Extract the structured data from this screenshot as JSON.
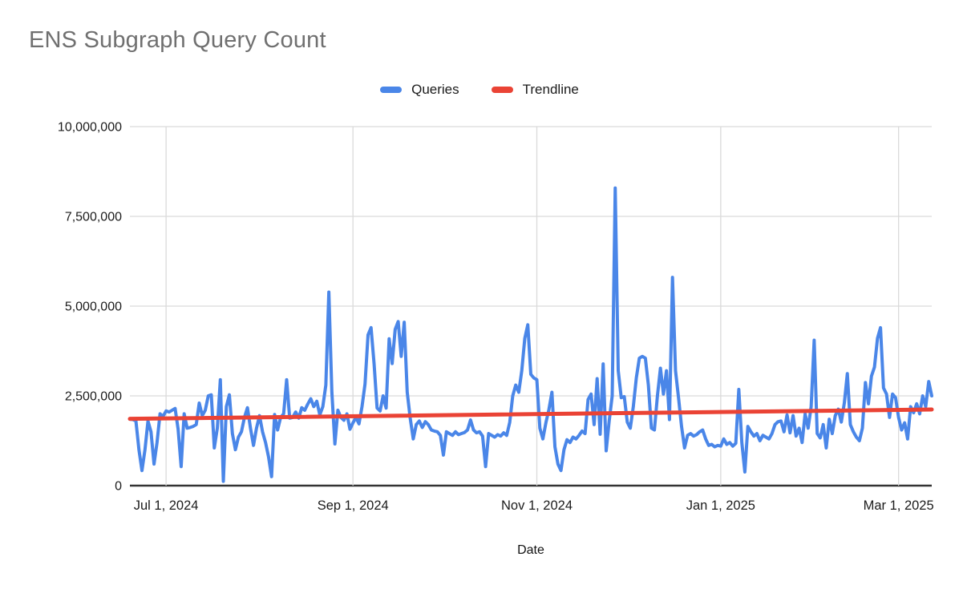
{
  "title": "ENS Subgraph Query Count",
  "legend": {
    "items": [
      {
        "label": "Queries",
        "color": "#4a86e8"
      },
      {
        "label": "Trendline",
        "color": "#ea4335"
      }
    ]
  },
  "x_axis_title": "Date",
  "colors": {
    "series_blue": "#4a86e8",
    "trend_red": "#ea4335",
    "title_gray": "#707070",
    "tick_text": "#1b1b1b",
    "gridline": "#dadada",
    "axis_line": "#333333",
    "background": "#ffffff"
  },
  "chart_data": {
    "type": "line",
    "title": "ENS Subgraph Query Count",
    "xlabel": "Date",
    "ylabel": "",
    "grid": true,
    "legend_position": "top-center",
    "x_axis": {
      "type": "date",
      "start": "2024-06-19",
      "end": "2025-03-12",
      "frequency": "daily",
      "num_points": 267
    },
    "x_ticks": [
      {
        "label": "Jul 1, 2024",
        "day_index": 12
      },
      {
        "label": "Sep 1, 2024",
        "day_index": 74
      },
      {
        "label": "Nov 1, 2024",
        "day_index": 135
      },
      {
        "label": "Jan 1, 2025",
        "day_index": 196
      },
      {
        "label": "Mar 1, 2025",
        "day_index": 255
      }
    ],
    "y_axis": {
      "min": 0,
      "max": 10000000,
      "tick_interval": 2500000,
      "ticks": [
        {
          "value": 0,
          "label": "0"
        },
        {
          "value": 2500000,
          "label": "2,500,000"
        },
        {
          "value": 5000000,
          "label": "5,000,000"
        },
        {
          "value": 7500000,
          "label": "7,500,000"
        },
        {
          "value": 10000000,
          "label": "10,000,000"
        }
      ]
    },
    "series": [
      {
        "name": "Queries",
        "color": "#4a86e8",
        "values": [
          1850000,
          1840000,
          1800000,
          1000000,
          420000,
          1000000,
          1800000,
          1500000,
          600000,
          1200000,
          2000000,
          1930000,
          2080000,
          2050000,
          2100000,
          2150000,
          1570000,
          530000,
          2000000,
          1600000,
          1620000,
          1650000,
          1700000,
          2300000,
          1950000,
          2100000,
          2500000,
          2530000,
          1050000,
          1600000,
          2950000,
          120000,
          2200000,
          2530000,
          1450000,
          1000000,
          1350000,
          1500000,
          1900000,
          2170000,
          1600000,
          1120000,
          1600000,
          1950000,
          1500000,
          1200000,
          800000,
          250000,
          1980000,
          1550000,
          1900000,
          2000000,
          2950000,
          1880000,
          1900000,
          2050000,
          1880000,
          2170000,
          2100000,
          2270000,
          2420000,
          2200000,
          2350000,
          1970000,
          2200000,
          2800000,
          5390000,
          2600000,
          1160000,
          2100000,
          1900000,
          1820000,
          2000000,
          1570000,
          1750000,
          1900000,
          1720000,
          2200000,
          2830000,
          4200000,
          4400000,
          3400000,
          2160000,
          2080000,
          2500000,
          2160000,
          4090000,
          3400000,
          4350000,
          4570000,
          3600000,
          4550000,
          2600000,
          1870000,
          1300000,
          1700000,
          1800000,
          1620000,
          1780000,
          1700000,
          1550000,
          1520000,
          1500000,
          1400000,
          850000,
          1500000,
          1450000,
          1400000,
          1500000,
          1420000,
          1450000,
          1480000,
          1550000,
          1830000,
          1550000,
          1470000,
          1500000,
          1380000,
          530000,
          1450000,
          1400000,
          1350000,
          1420000,
          1380000,
          1470000,
          1400000,
          1760000,
          2500000,
          2800000,
          2600000,
          3200000,
          4100000,
          4480000,
          3100000,
          3000000,
          2950000,
          1600000,
          1300000,
          1750000,
          2120000,
          2600000,
          1080000,
          600000,
          420000,
          1000000,
          1280000,
          1200000,
          1350000,
          1300000,
          1400000,
          1520000,
          1450000,
          2400000,
          2550000,
          1700000,
          2980000,
          1430000,
          3390000,
          970000,
          1800000,
          2500000,
          8290000,
          3200000,
          2450000,
          2480000,
          1770000,
          1600000,
          2200000,
          3000000,
          3550000,
          3600000,
          3550000,
          2800000,
          1600000,
          1550000,
          2500000,
          3270000,
          2550000,
          3200000,
          1840000,
          5800000,
          3200000,
          2450000,
          1650000,
          1050000,
          1400000,
          1450000,
          1380000,
          1420000,
          1500000,
          1550000,
          1300000,
          1120000,
          1150000,
          1080000,
          1120000,
          1100000,
          1300000,
          1150000,
          1200000,
          1100000,
          1180000,
          2680000,
          1200000,
          380000,
          1650000,
          1500000,
          1380000,
          1450000,
          1250000,
          1400000,
          1350000,
          1300000,
          1450000,
          1700000,
          1780000,
          1800000,
          1500000,
          1970000,
          1470000,
          1950000,
          1380000,
          1600000,
          1200000,
          2000000,
          1600000,
          2200000,
          4050000,
          1450000,
          1330000,
          1700000,
          1050000,
          1850000,
          1450000,
          1950000,
          2130000,
          1770000,
          2300000,
          3120000,
          1700000,
          1500000,
          1350000,
          1250000,
          1600000,
          2870000,
          2280000,
          3050000,
          3300000,
          4100000,
          4400000,
          2720000,
          2550000,
          1900000,
          2550000,
          2450000,
          1900000,
          1550000,
          1750000,
          1300000,
          2200000,
          2030000,
          2280000,
          2000000,
          2500000,
          2200000,
          2900000,
          2500000
        ]
      },
      {
        "name": "Trendline",
        "color": "#ea4335",
        "type": "linear_trend",
        "start_value": 1860000,
        "end_value": 2120000
      }
    ]
  }
}
